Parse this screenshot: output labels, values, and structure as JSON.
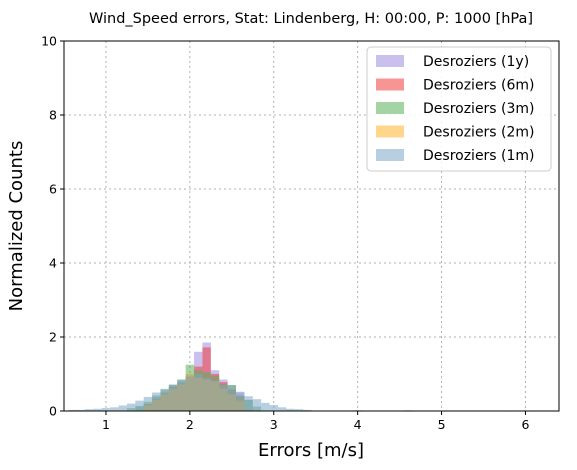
{
  "chart_data": {
    "type": "bar",
    "title": "Wind_Speed errors, Stat: Lindenberg, H: 00:00, P: 1000 [hPa]",
    "xlabel": "Errors [m/s]",
    "ylabel": "Normalized Counts",
    "xlim": [
      0.5,
      6.4
    ],
    "ylim": [
      0,
      10
    ],
    "xticks": [
      "1",
      "2",
      "3",
      "4",
      "5",
      "6"
    ],
    "yticks": [
      "0",
      "2",
      "4",
      "6",
      "8",
      "10"
    ],
    "grid": true,
    "legend_position": "top-right",
    "bin_width": 0.1,
    "series": [
      {
        "name": "Desroziers (1y)",
        "color": "#9d8ce0",
        "x": [
          1.4,
          1.5,
          1.6,
          1.7,
          1.8,
          1.9,
          2.0,
          2.1,
          2.2,
          2.3,
          2.4,
          2.5,
          2.6,
          2.7
        ],
        "values": [
          0.12,
          0.2,
          0.38,
          0.52,
          0.7,
          0.8,
          1.0,
          1.6,
          1.85,
          1.1,
          0.85,
          0.7,
          0.52,
          0.3
        ]
      },
      {
        "name": "Desroziers (6m)",
        "color": "#f03c3c",
        "x": [
          1.5,
          1.6,
          1.7,
          1.8,
          1.9,
          2.0,
          2.1,
          2.2,
          2.3,
          2.4,
          2.5,
          2.6
        ],
        "values": [
          0.18,
          0.32,
          0.48,
          0.65,
          0.75,
          0.92,
          1.2,
          1.72,
          1.0,
          0.78,
          0.58,
          0.4
        ]
      },
      {
        "name": "Desroziers (3m)",
        "color": "#5aae5a",
        "x": [
          1.3,
          1.4,
          1.5,
          1.6,
          1.7,
          1.8,
          1.9,
          2.0,
          2.1,
          2.2,
          2.3,
          2.4,
          2.5,
          2.6,
          2.7,
          2.8
        ],
        "values": [
          0.08,
          0.14,
          0.25,
          0.42,
          0.58,
          0.7,
          0.85,
          1.25,
          1.1,
          1.05,
          0.95,
          0.72,
          0.7,
          0.42,
          0.3,
          0.12
        ]
      },
      {
        "name": "Desroziers (2m)",
        "color": "#ffb52e",
        "x": [
          1.5,
          1.6,
          1.7,
          1.8,
          1.9,
          2.0,
          2.1,
          2.2,
          2.3,
          2.4,
          2.5,
          2.6
        ],
        "values": [
          0.15,
          0.3,
          0.45,
          0.6,
          0.72,
          1.0,
          0.9,
          0.85,
          0.8,
          0.6,
          0.45,
          0.28
        ]
      },
      {
        "name": "Desroziers (1m)",
        "color": "#7ba7c7",
        "x": [
          0.6,
          0.7,
          0.8,
          0.9,
          1.0,
          1.1,
          1.2,
          1.3,
          1.4,
          1.5,
          1.6,
          1.7,
          1.8,
          1.9,
          2.0,
          2.1,
          2.2,
          2.3,
          2.4,
          2.5,
          2.6,
          2.7,
          2.8,
          2.9,
          3.0,
          3.1,
          3.2,
          3.3,
          3.4,
          4.0,
          4.6,
          5.8,
          6.1
        ],
        "values": [
          0.03,
          0.03,
          0.05,
          0.06,
          0.08,
          0.1,
          0.15,
          0.2,
          0.28,
          0.38,
          0.5,
          0.6,
          0.72,
          0.85,
          0.95,
          1.0,
          0.9,
          0.82,
          0.7,
          0.6,
          0.5,
          0.4,
          0.32,
          0.22,
          0.16,
          0.1,
          0.06,
          0.05,
          0.03,
          0.02,
          0.02,
          0.015,
          0.015
        ]
      }
    ]
  }
}
